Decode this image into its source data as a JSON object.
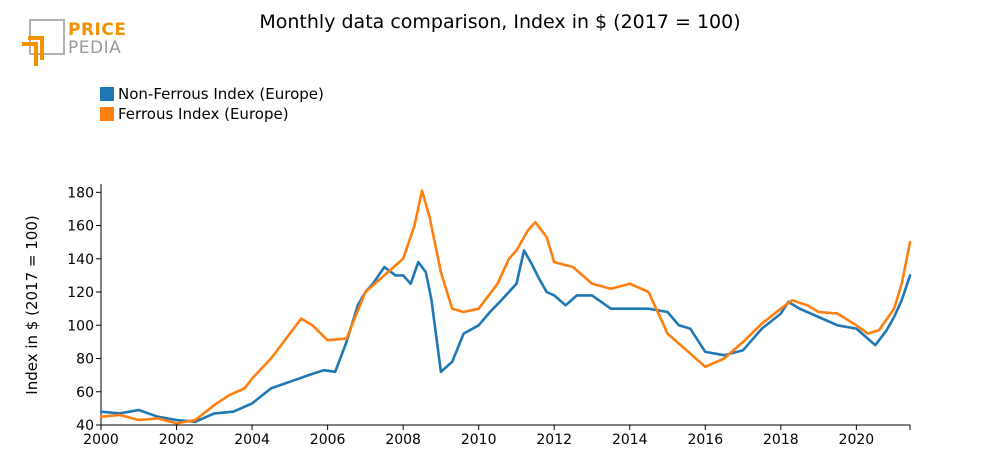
{
  "logo": {
    "line1": "PRICE",
    "line2": "PEDIA",
    "accent_color": "#f39200",
    "gray_color": "#9a9a9a"
  },
  "chart_data": {
    "type": "line",
    "title": "Monthly data comparison, Index in $ (2017 = 100)",
    "xlabel": "",
    "ylabel": "Index in $ (2017 = 100)",
    "xlim": [
      2000,
      2021.42
    ],
    "ylim": [
      40,
      185
    ],
    "x_ticks": [
      "2000",
      "2002",
      "2004",
      "2006",
      "2008",
      "2010",
      "2012",
      "2014",
      "2016",
      "2018",
      "2020"
    ],
    "y_ticks": [
      "40",
      "60",
      "80",
      "100",
      "120",
      "140",
      "160",
      "180"
    ],
    "legend_position": "top-left",
    "series": [
      {
        "name": "Non-Ferrous Index (Europe)",
        "color": "#1f77b4",
        "x": [
          2000,
          2000.5,
          2001,
          2001.5,
          2002,
          2002.5,
          2003,
          2003.5,
          2004,
          2004.5,
          2005,
          2005.5,
          2005.9,
          2006.2,
          2006.5,
          2006.8,
          2007,
          2007.2,
          2007.5,
          2007.8,
          2008,
          2008.2,
          2008.4,
          2008.6,
          2008.75,
          2009,
          2009.3,
          2009.6,
          2010,
          2010.3,
          2010.6,
          2011,
          2011.2,
          2011.4,
          2011.6,
          2011.8,
          2012,
          2012.3,
          2012.6,
          2013,
          2013.5,
          2014,
          2014.5,
          2015,
          2015.3,
          2015.6,
          2016,
          2016.5,
          2017,
          2017.5,
          2018,
          2018.2,
          2018.5,
          2019,
          2019.5,
          2020,
          2020.25,
          2020.5,
          2020.8,
          2021,
          2021.2,
          2021.42
        ],
        "values": [
          48,
          47,
          49,
          45,
          43,
          42,
          47,
          48,
          53,
          62,
          66,
          70,
          73,
          72,
          90,
          112,
          120,
          125,
          135,
          130,
          130,
          125,
          138,
          132,
          115,
          72,
          78,
          95,
          100,
          108,
          115,
          125,
          145,
          137,
          128,
          120,
          118,
          112,
          118,
          118,
          110,
          110,
          110,
          108,
          100,
          98,
          84,
          82,
          85,
          98,
          107,
          114,
          110,
          105,
          100,
          98,
          93,
          88,
          97,
          105,
          115,
          130
        ]
      },
      {
        "name": "Ferrous Index (Europe)",
        "color": "#ff7f0e",
        "x": [
          2000,
          2000.5,
          2001,
          2001.5,
          2002,
          2002.5,
          2003,
          2003.4,
          2003.8,
          2004,
          2004.5,
          2005,
          2005.3,
          2005.6,
          2006,
          2006.5,
          2007,
          2007.5,
          2008,
          2008.3,
          2008.5,
          2008.7,
          2009,
          2009.3,
          2009.6,
          2010,
          2010.5,
          2010.8,
          2011,
          2011.3,
          2011.5,
          2011.8,
          2012,
          2012.5,
          2013,
          2013.5,
          2014,
          2014.5,
          2015,
          2015.5,
          2016,
          2016.5,
          2017,
          2017.5,
          2018,
          2018.3,
          2018.7,
          2019,
          2019.5,
          2020,
          2020.3,
          2020.6,
          2021,
          2021.2,
          2021.42
        ],
        "values": [
          45,
          46,
          43,
          44,
          41,
          43,
          52,
          58,
          62,
          68,
          80,
          95,
          104,
          100,
          91,
          92,
          120,
          130,
          140,
          160,
          181,
          165,
          132,
          110,
          108,
          110,
          125,
          140,
          145,
          157,
          162,
          153,
          138,
          135,
          125,
          122,
          125,
          120,
          95,
          85,
          75,
          80,
          90,
          101,
          110,
          115,
          112,
          108,
          107,
          100,
          95,
          97,
          110,
          125,
          150
        ]
      }
    ]
  }
}
